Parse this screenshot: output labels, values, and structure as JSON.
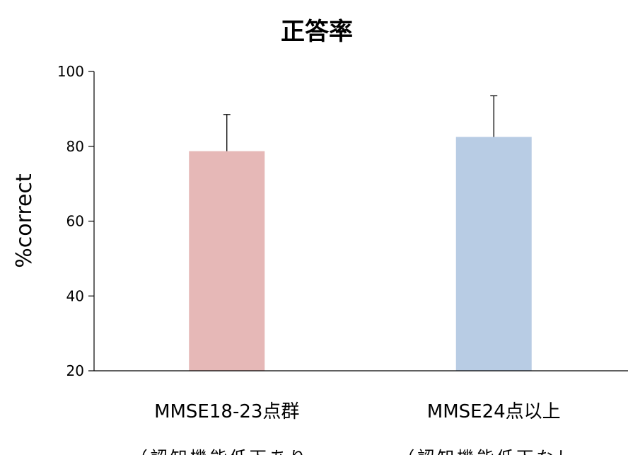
{
  "chart_data": {
    "type": "bar",
    "title": "正答率",
    "ylabel": "%correct",
    "xlabel": "",
    "ylim": [
      20,
      100
    ],
    "yticks": [
      20,
      40,
      60,
      80,
      100
    ],
    "ytick_labels": [
      "20",
      "40",
      "60",
      "80",
      "100"
    ],
    "grid": false,
    "categories": [
      "MMSE18-23点群",
      "MMSE24点以上"
    ],
    "category_sublabels": [
      "（認知機能低下あり",
      "（認知機能低下なし"
    ],
    "values": [
      78.7,
      82.5
    ],
    "errors": [
      9.8,
      11.0
    ],
    "colors": [
      "#e6b8b7",
      "#b8cce4"
    ]
  }
}
